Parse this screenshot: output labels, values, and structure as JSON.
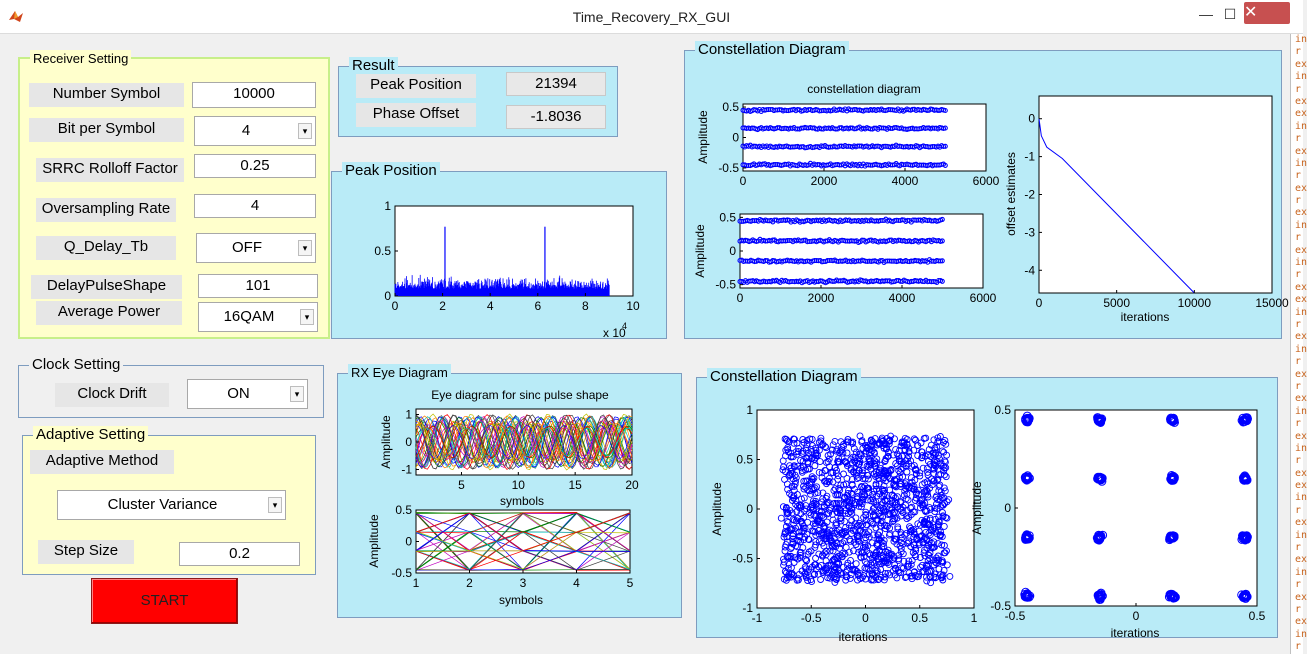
{
  "window": {
    "title": "Time_Recovery_RX_GUI",
    "minimize": "—",
    "maximize": "☐",
    "close": "✕"
  },
  "edge_lines": [
    "in",
    "r",
    "ex",
    "in",
    "r",
    "ex",
    "ex",
    "in",
    "r",
    "ex",
    "in",
    "r",
    "ex",
    "r",
    "ex",
    "in",
    "r",
    "ex",
    "in",
    "r",
    "ex",
    "ex",
    "in",
    "r",
    "ex",
    "in",
    "r",
    "ex",
    "r",
    "ex",
    "in",
    "r",
    "ex",
    "in",
    "r",
    "ex",
    "ex",
    "in",
    "r",
    "ex",
    "in",
    "r",
    "ex",
    "in",
    "r",
    "ex",
    "r",
    "ex",
    "in",
    "r"
  ],
  "receiver": {
    "title": "Receiver Setting",
    "number_symbol": {
      "label": "Number Symbol",
      "value": "10000"
    },
    "bit_per_symbol": {
      "label": "Bit per Symbol",
      "value": "4"
    },
    "srrc_rolloff": {
      "label": "SRRC Rolloff Factor",
      "value": "0.25"
    },
    "oversampling": {
      "label": "Oversampling Rate",
      "value": "4"
    },
    "q_delay": {
      "label": "Q_Delay_Tb",
      "value": "OFF"
    },
    "delay_pulse": {
      "label": "DelayPulseShape",
      "value": "101"
    },
    "average_power": {
      "label": "Average Power",
      "value": "16QAM"
    }
  },
  "result": {
    "title": "Result",
    "peak_label": "Peak Position",
    "peak_value": "21394",
    "phase_label": "Phase Offset",
    "phase_value": "-1.8036"
  },
  "clock": {
    "title": "Clock Setting",
    "drift_label": "Clock Drift",
    "drift_value": "ON"
  },
  "adaptive": {
    "title": "Adaptive Setting",
    "method_label": "Adaptive Method",
    "method_value": "Cluster Variance",
    "step_label": "Step Size",
    "step_value": "0.2"
  },
  "start_label": "START",
  "peak_panel": {
    "title": "Peak Position",
    "xticks": [
      "0",
      "2",
      "4",
      "6",
      "8",
      "10"
    ],
    "yticks": [
      "0",
      "0.5",
      "1"
    ],
    "xexp_base": "x 10",
    "xexp": "4",
    "spikes_x": [
      2.1,
      6.3
    ],
    "noise_end_x": 9.0
  },
  "eye_panel": {
    "title": "RX Eye Diagram",
    "plot1_title": "Eye diagram for sinc pulse shape",
    "plot1_ylabel": "Amplitude",
    "plot1_xlabel": "symbols",
    "plot1_xticks": [
      "5",
      "10",
      "15",
      "20"
    ],
    "plot1_yticks": [
      "-1",
      "0",
      "1"
    ],
    "plot2_ylabel": "Amplitude",
    "plot2_xlabel": "symbols",
    "plot2_xticks": [
      "1",
      "2",
      "3",
      "4",
      "5"
    ],
    "plot2_yticks": [
      "-0.5",
      "0",
      "0.5"
    ]
  },
  "const_top": {
    "title": "Constellation Diagram",
    "plot1_title": "constellation diagram",
    "plot1_ylabel": "Amplitude",
    "plot1_xticks": [
      "0",
      "2000",
      "4000",
      "6000"
    ],
    "plot1_yticks": [
      "-0.5",
      "0",
      "0.5"
    ],
    "plot2_ylabel": "Amplitude",
    "plot2_xticks": [
      "0",
      "2000",
      "4000",
      "6000"
    ],
    "plot2_yticks": [
      "-0.5",
      "0",
      "0.5"
    ],
    "rail_levels": [
      0.45,
      0.15,
      -0.15,
      -0.45
    ],
    "plot3_ylabel": "offset estimates",
    "plot3_xlabel": "iterations",
    "plot3_xticks": [
      "0",
      "5000",
      "10000",
      "15000"
    ],
    "plot3_yticks": [
      "-4",
      "-3",
      "-2",
      "-1",
      "0"
    ],
    "offset_end": {
      "x": 10000,
      "y": -4.6
    }
  },
  "const_bottom": {
    "title": "Constellation Diagram",
    "plot1_ylabel": "Amplitude",
    "plot1_xlabel": "iterations",
    "plot1_xticks": [
      "-1",
      "-0.5",
      "0",
      "0.5",
      "1"
    ],
    "plot1_yticks": [
      "-1",
      "-0.5",
      "0",
      "0.5",
      "1"
    ],
    "plot2_ylabel": "Amplitude",
    "plot2_xlabel": "iterations",
    "plot2_xticks": [
      "-0.5",
      "0",
      "0.5"
    ],
    "plot2_yticks": [
      "-0.5",
      "0",
      "0.5"
    ],
    "qam_levels": [
      -0.45,
      -0.15,
      0.15,
      0.45
    ]
  },
  "colors": {
    "panel_cyan": "#b9ebf7",
    "panel_yellow": "#ffffcc",
    "plot_blue": "#0000ff",
    "start_red": "#ff0000"
  }
}
